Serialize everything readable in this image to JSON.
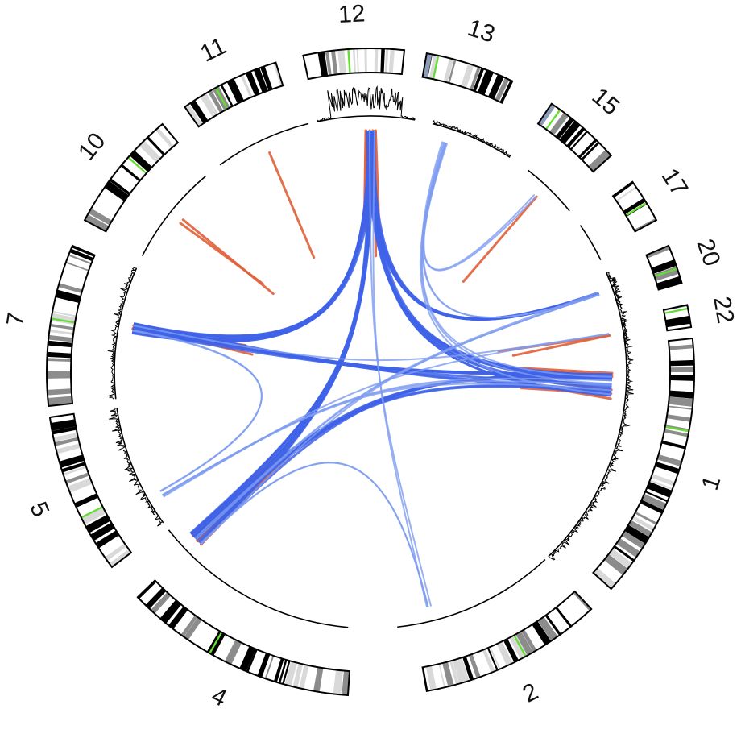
{
  "colors": {
    "ideogram_outline": "#000000",
    "band_light": "#d9d9d9",
    "band_mid": "#8c8c8c",
    "band_dark": "#000000",
    "centromere": "#66dd33",
    "acrocentric_cap": "#8e9bb8",
    "intra_link": "#e0603a",
    "inter_link": "#3f63e8",
    "inter_link_light": "#7e9cf0",
    "track_line": "#000000"
  },
  "chromosomes": [
    {
      "name": "1"
    },
    {
      "name": "2"
    },
    {
      "name": "4"
    },
    {
      "name": "5"
    },
    {
      "name": "7"
    },
    {
      "name": "10"
    },
    {
      "name": "11"
    },
    {
      "name": "12"
    },
    {
      "name": "13"
    },
    {
      "name": "15"
    },
    {
      "name": "17"
    },
    {
      "name": "20"
    },
    {
      "name": "22"
    }
  ],
  "links": {
    "inter": [
      {
        "from": "12",
        "to": "7",
        "count": 10,
        "weight": "heavy"
      },
      {
        "from": "12",
        "to": "4",
        "count": 10,
        "weight": "heavy"
      },
      {
        "from": "12",
        "to": "1",
        "count": 9,
        "weight": "heavy"
      },
      {
        "from": "12",
        "to": "20",
        "count": 8,
        "weight": "heavy"
      },
      {
        "from": "7",
        "to": "1",
        "count": 9,
        "weight": "heavy"
      },
      {
        "from": "4",
        "to": "1",
        "count": 8,
        "weight": "heavy"
      },
      {
        "from": "4",
        "to": "20",
        "count": 3,
        "weight": "light"
      },
      {
        "from": "5",
        "to": "1",
        "count": 3,
        "weight": "light"
      },
      {
        "from": "13",
        "to": "1",
        "count": 3,
        "weight": "light"
      },
      {
        "from": "13",
        "to": "15",
        "count": 2,
        "weight": "light"
      },
      {
        "from": "13",
        "to": "20",
        "count": 2,
        "weight": "light"
      },
      {
        "from": "7",
        "to": "22",
        "count": 1,
        "weight": "light"
      },
      {
        "from": "5",
        "to": "22",
        "count": 1,
        "weight": "light"
      },
      {
        "from": "2",
        "to": "12",
        "count": 2,
        "weight": "light"
      },
      {
        "from": "2",
        "to": "4",
        "count": 2,
        "weight": "light"
      },
      {
        "from": "5",
        "to": "7",
        "count": 2,
        "weight": "light"
      }
    ],
    "intra": [
      {
        "chr": "12",
        "count": 6
      },
      {
        "chr": "15",
        "count": 1
      },
      {
        "chr": "11",
        "count": 1
      },
      {
        "chr": "10",
        "count": 2
      },
      {
        "chr": "22",
        "count": 2
      },
      {
        "chr": "1",
        "count": 6
      },
      {
        "chr": "4",
        "count": 5
      },
      {
        "chr": "7",
        "count": 3
      }
    ]
  }
}
